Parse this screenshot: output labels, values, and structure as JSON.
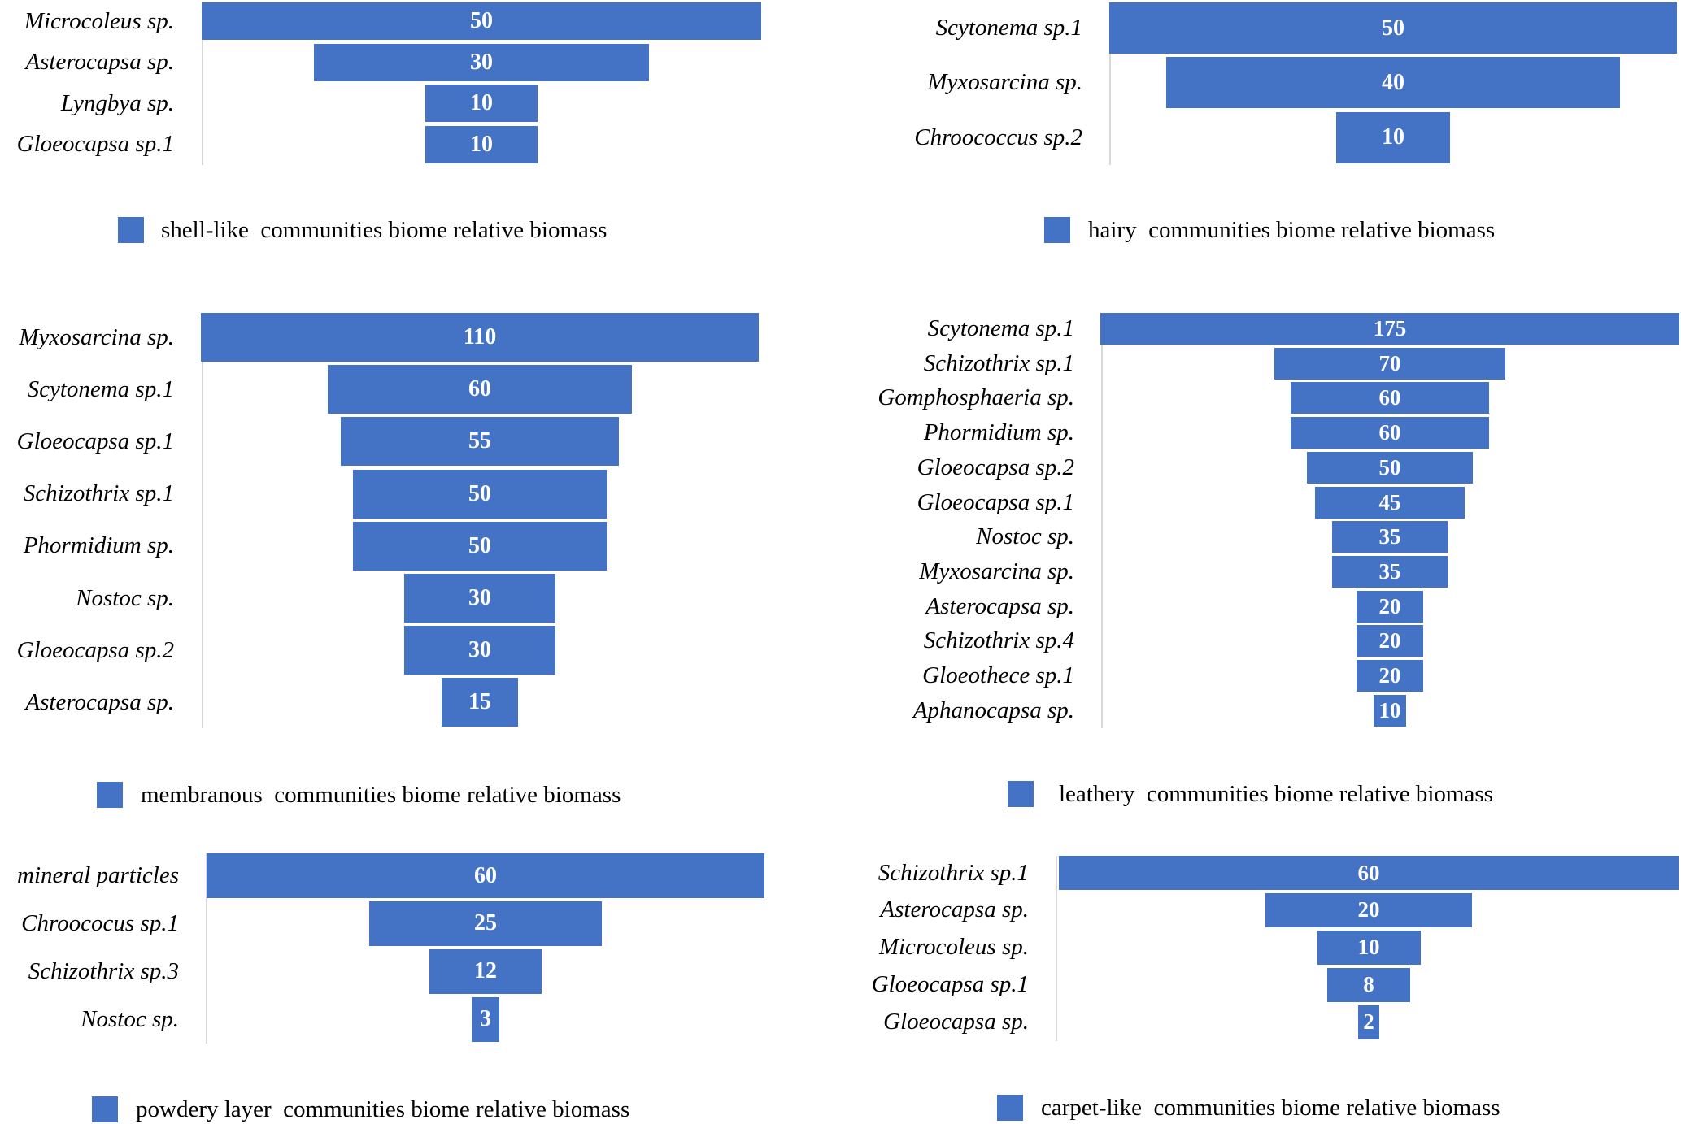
{
  "colors": {
    "bar": "#4472C4",
    "value_text": "#FFFFFF"
  },
  "chart_data": [
    {
      "type": "bar",
      "orientation": "horizontal-funnel",
      "legend": "shell-like  communities biome relative biomass",
      "legend_position": "bottom",
      "categories": [
        "Microcoleus sp.",
        "Asterocapsa sp.",
        "Lyngbya sp.",
        "Gloeocapsa sp.1"
      ],
      "values": [
        50,
        30,
        10,
        10
      ]
    },
    {
      "type": "bar",
      "orientation": "horizontal-funnel",
      "legend": "hairy  communities biome relative biomass",
      "legend_position": "bottom",
      "categories": [
        "Scytonema sp.1",
        "Myxosarcina sp.",
        "Chroococcus sp.2"
      ],
      "values": [
        50,
        40,
        10
      ]
    },
    {
      "type": "bar",
      "orientation": "horizontal-funnel",
      "legend": "membranous  communities biome relative biomass",
      "legend_position": "bottom",
      "categories": [
        "Myxosarcina sp.",
        "Scytonema sp.1",
        "Gloeocapsa sp.1",
        "Schizothrix sp.1",
        "Phormidium sp.",
        "Nostoc sp.",
        "Gloeocapsa sp.2",
        "Asterocapsa sp."
      ],
      "values": [
        110,
        60,
        55,
        50,
        50,
        30,
        30,
        15
      ]
    },
    {
      "type": "bar",
      "orientation": "horizontal-funnel",
      "legend": "leathery  communities biome relative biomass",
      "legend_position": "bottom",
      "categories": [
        "Scytonema sp.1",
        "Schizothrix sp.1",
        "Gomphosphaeria sp.",
        "Phormidium sp.",
        "Gloeocapsa sp.2",
        "Gloeocapsa sp.1",
        "Nostoc sp.",
        "Myxosarcina sp.",
        "Asterocapsa sp.",
        "Schizothrix sp.4",
        "Gloeothece sp.1",
        "Aphanocapsa sp."
      ],
      "values": [
        175,
        70,
        60,
        60,
        50,
        45,
        35,
        35,
        20,
        20,
        20,
        10
      ]
    },
    {
      "type": "bar",
      "orientation": "horizontal-funnel",
      "legend": "powdery layer  communities biome relative biomass",
      "legend_position": "bottom",
      "categories": [
        "mineral particles",
        "Chroococus sp.1",
        "Schizothrix sp.3",
        "Nostoc sp."
      ],
      "values": [
        60,
        25,
        12,
        3
      ]
    },
    {
      "type": "bar",
      "orientation": "horizontal-funnel",
      "legend": "carpet-like  communities biome relative biomass",
      "legend_position": "bottom",
      "categories": [
        "Schizothrix sp.1",
        "Asterocapsa sp.",
        "Microcoleus sp.",
        "Gloeocapsa sp.1",
        "Gloeocapsa sp."
      ],
      "values": [
        60,
        20,
        10,
        8,
        2
      ]
    }
  ]
}
